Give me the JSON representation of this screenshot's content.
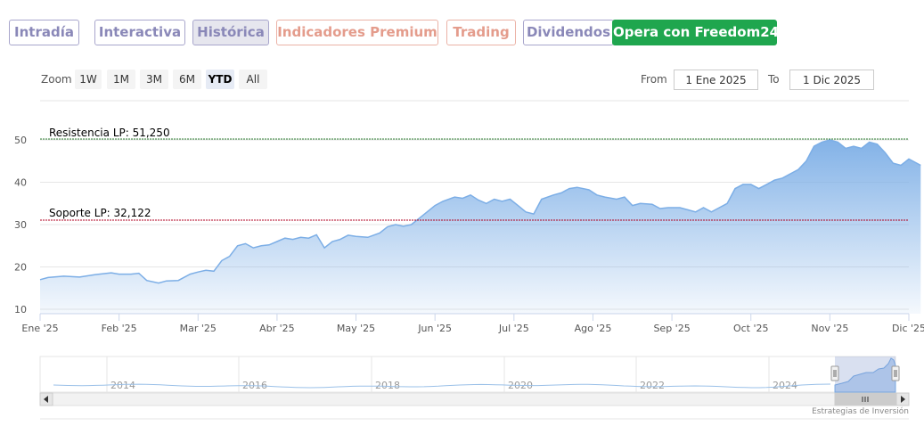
{
  "tabs": [
    {
      "label": "Intradía",
      "style": "violet"
    },
    {
      "label": "Interactiva",
      "style": "violet"
    },
    {
      "label": "Histórica",
      "style": "violet active"
    },
    {
      "label": "Indicadores Premium",
      "style": "salmon"
    },
    {
      "label": "Trading",
      "style": "salmon"
    },
    {
      "label": "Dividendos",
      "style": "violet"
    },
    {
      "label": "Opera con Freedom24",
      "style": "green"
    }
  ],
  "zoom": {
    "label": "Zoom",
    "buttons": [
      "1W",
      "1M",
      "3M",
      "6M",
      "YTD",
      "All"
    ],
    "selected": "YTD"
  },
  "range": {
    "from_label": "From",
    "from_value": "1 Ene 2025",
    "to_label": "To",
    "to_value": "1 Dic 2025"
  },
  "credits": "Estrategias de Inversión",
  "chart_data": {
    "type": "area",
    "title": "",
    "xlabel": "",
    "ylabel": "",
    "ylim": [
      10,
      50
    ],
    "y_ticks": [
      10,
      20,
      30,
      40,
      50
    ],
    "x_ticks": [
      "Ene '25",
      "Feb '25",
      "Mar '25",
      "Abr '25",
      "May '25",
      "Jun '25",
      "Jul '25",
      "Ago '25",
      "Sep '25",
      "Oct '25",
      "Nov '25",
      "Dic '25"
    ],
    "grid": true,
    "series": [
      {
        "values": [
          [
            0.0,
            17.0
          ],
          [
            0.1,
            17.5
          ],
          [
            0.3,
            17.8
          ],
          [
            0.5,
            17.6
          ],
          [
            0.7,
            18.2
          ],
          [
            0.9,
            18.6
          ],
          [
            1.0,
            18.3
          ],
          [
            1.15,
            18.3
          ],
          [
            1.25,
            18.5
          ],
          [
            1.35,
            16.8
          ],
          [
            1.5,
            16.2
          ],
          [
            1.6,
            16.7
          ],
          [
            1.75,
            16.8
          ],
          [
            1.9,
            18.3
          ],
          [
            2.0,
            18.8
          ],
          [
            2.1,
            19.2
          ],
          [
            2.2,
            19.0
          ],
          [
            2.3,
            21.5
          ],
          [
            2.4,
            22.5
          ],
          [
            2.5,
            25.0
          ],
          [
            2.6,
            25.5
          ],
          [
            2.7,
            24.5
          ],
          [
            2.8,
            25.0
          ],
          [
            2.9,
            25.2
          ],
          [
            3.0,
            26.0
          ],
          [
            3.1,
            26.8
          ],
          [
            3.2,
            26.5
          ],
          [
            3.3,
            27.0
          ],
          [
            3.4,
            26.8
          ],
          [
            3.5,
            27.6
          ],
          [
            3.6,
            24.5
          ],
          [
            3.7,
            26.0
          ],
          [
            3.8,
            26.5
          ],
          [
            3.9,
            27.5
          ],
          [
            4.0,
            27.2
          ],
          [
            4.15,
            27.0
          ],
          [
            4.3,
            28.0
          ],
          [
            4.4,
            29.5
          ],
          [
            4.5,
            30.0
          ],
          [
            4.6,
            29.6
          ],
          [
            4.7,
            30.0
          ],
          [
            4.8,
            31.5
          ],
          [
            4.9,
            33.0
          ],
          [
            5.0,
            34.5
          ],
          [
            5.1,
            35.5
          ],
          [
            5.25,
            36.5
          ],
          [
            5.35,
            36.2
          ],
          [
            5.45,
            37.0
          ],
          [
            5.55,
            35.8
          ],
          [
            5.65,
            35.0
          ],
          [
            5.75,
            36.0
          ],
          [
            5.85,
            35.5
          ],
          [
            5.95,
            36.0
          ],
          [
            6.05,
            34.5
          ],
          [
            6.15,
            33.0
          ],
          [
            6.25,
            32.5
          ],
          [
            6.35,
            36.0
          ],
          [
            6.5,
            37.0
          ],
          [
            6.6,
            37.5
          ],
          [
            6.7,
            38.5
          ],
          [
            6.8,
            38.8
          ],
          [
            6.95,
            38.2
          ],
          [
            7.05,
            37.0
          ],
          [
            7.15,
            36.5
          ],
          [
            7.3,
            36.0
          ],
          [
            7.4,
            36.5
          ],
          [
            7.5,
            34.5
          ],
          [
            7.6,
            35.0
          ],
          [
            7.75,
            34.8
          ],
          [
            7.85,
            33.8
          ],
          [
            7.95,
            34.0
          ],
          [
            8.1,
            34.0
          ],
          [
            8.2,
            33.5
          ],
          [
            8.3,
            33.0
          ],
          [
            8.4,
            34.0
          ],
          [
            8.5,
            33.0
          ],
          [
            8.6,
            34.0
          ],
          [
            8.7,
            35.0
          ],
          [
            8.8,
            38.5
          ],
          [
            8.9,
            39.5
          ],
          [
            9.0,
            39.5
          ],
          [
            9.1,
            38.5
          ],
          [
            9.2,
            39.5
          ],
          [
            9.3,
            40.5
          ],
          [
            9.4,
            41.0
          ],
          [
            9.5,
            42.0
          ],
          [
            9.6,
            43.0
          ],
          [
            9.7,
            45.0
          ],
          [
            9.8,
            48.5
          ],
          [
            9.9,
            49.5
          ],
          [
            10.0,
            50.0
          ],
          [
            10.1,
            49.5
          ],
          [
            10.2,
            48.0
          ],
          [
            10.3,
            48.5
          ],
          [
            10.4,
            48.0
          ],
          [
            10.5,
            49.5
          ],
          [
            10.6,
            49.0
          ],
          [
            10.7,
            47.0
          ],
          [
            10.8,
            44.5
          ],
          [
            10.9,
            44.0
          ],
          [
            11.0,
            45.5
          ],
          [
            11.15,
            44.0
          ]
        ]
      }
    ],
    "plot_lines": [
      {
        "label": "Resistencia LP: 51,250",
        "value": 51.25,
        "color": "#2e7d32"
      },
      {
        "label": "Soporte LP: 32,122",
        "value": 32.122,
        "color": "#b00020"
      }
    ],
    "navigator": {
      "year_ticks": [
        "2014",
        "2016",
        "2018",
        "2020",
        "2022",
        "2024"
      ]
    }
  }
}
